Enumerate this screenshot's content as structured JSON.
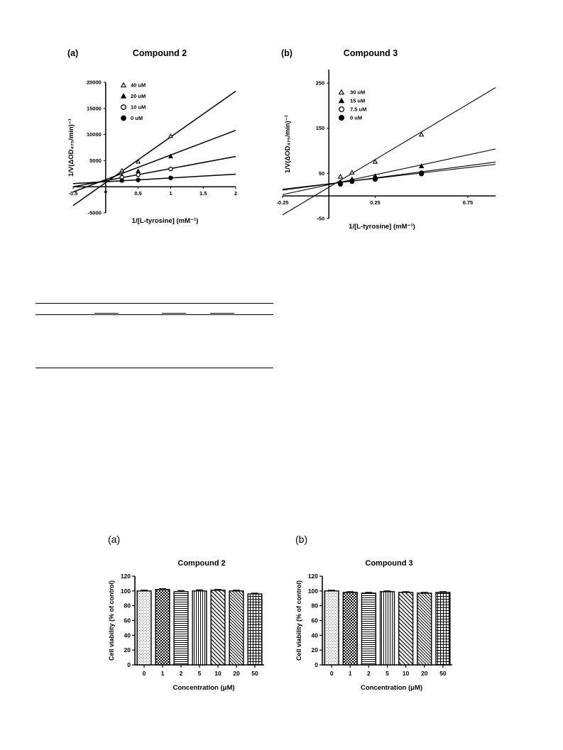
{
  "chart_data": [
    {
      "type": "line",
      "panel_label": "(a)",
      "title": "Compound  2",
      "xlabel": "1/[L-tyrosine] (mM⁻¹)",
      "ylabel": "1/V(ΔOD₄₇₅/min)⁻¹",
      "xlim": [
        -0.5,
        2
      ],
      "ylim": [
        -5000,
        20000
      ],
      "xticks": [
        -0.5,
        0.5,
        1,
        1.5,
        2
      ],
      "xtick_labels": [
        "-0.5",
        "0.5",
        "1",
        "1.5",
        "2"
      ],
      "yticks": [
        -5000,
        5000,
        10000,
        15000,
        20000
      ],
      "ytick_labels": [
        "-5000",
        "5000",
        "10000",
        "15000",
        "20000"
      ],
      "legend_position": "top-left",
      "x": [
        0.25,
        0.5,
        1
      ],
      "series": [
        {
          "name": "40 uM",
          "marker": "triangle-open",
          "values": [
            3100,
            4800,
            9700
          ],
          "fit": [
            [
              -0.5,
              -3600
            ],
            [
              2,
              18300
            ]
          ]
        },
        {
          "name": "20 uM",
          "marker": "triangle-filled",
          "values": [
            2100,
            3000,
            5800
          ],
          "fit": [
            [
              -0.5,
              -1000
            ],
            [
              2,
              10800
            ]
          ]
        },
        {
          "name": "10 uM",
          "marker": "circle-open",
          "values": [
            1800,
            2300,
            3400
          ],
          "fit": [
            [
              -0.5,
              0
            ],
            [
              2,
              5800
            ]
          ]
        },
        {
          "name": "0 uM",
          "marker": "circle-filled",
          "values": [
            1200,
            1300,
            1700
          ],
          "fit": [
            [
              -0.5,
              600
            ],
            [
              2,
              2400
            ]
          ]
        }
      ],
      "extra_points": [
        {
          "x": 0,
          "y": -1000,
          "marker": "circle-filled-small"
        }
      ]
    },
    {
      "type": "line",
      "panel_label": "(b)",
      "title": "Compound 3",
      "xlabel": "1/[L-tyrosine] (mM⁻¹)",
      "ylabel": "1/V(ΔOD₄₇₅/min)⁻¹",
      "xlim": [
        -0.25,
        0.9
      ],
      "ylim": [
        -50,
        280
      ],
      "xticks": [
        -0.25,
        0.25,
        0.75
      ],
      "xtick_labels": [
        "-0.25",
        "0.25",
        "0.75"
      ],
      "yticks": [
        -50,
        50,
        150,
        250
      ],
      "ytick_labels": [
        "-50",
        "50",
        "150",
        "250"
      ],
      "legend_position": "top-left",
      "x": [
        0.0625,
        0.125,
        0.25,
        0.5
      ],
      "series": [
        {
          "name": "30 uM",
          "marker": "triangle-open",
          "values": [
            43,
            52,
            76,
            136
          ],
          "fit": [
            [
              -0.25,
              -42
            ],
            [
              0.9,
              240
            ]
          ]
        },
        {
          "name": "15 uM",
          "marker": "triangle-filled",
          "values": [
            31,
            37,
            44,
            66
          ],
          "fit": [
            [
              -0.25,
              3
            ],
            [
              0.9,
              104
            ]
          ]
        },
        {
          "name": "7.5 uM",
          "marker": "circle-open",
          "values": [
            28,
            34,
            39,
            51
          ],
          "fit": [
            [
              -0.25,
              13
            ],
            [
              0.9,
              75
            ]
          ]
        },
        {
          "name": "0 uM",
          "marker": "circle-filled",
          "values": [
            26,
            32,
            37,
            49
          ],
          "fit": [
            [
              -0.25,
              15
            ],
            [
              0.9,
              70
            ]
          ]
        }
      ]
    },
    {
      "type": "bar",
      "panel_label": "(a)",
      "title": "Compound 2",
      "xlabel": "Concentration (μM)",
      "ylabel": "Cell viability (% of control)",
      "ylim": [
        0,
        120
      ],
      "yticks": [
        0,
        20,
        40,
        60,
        80,
        100,
        120
      ],
      "categories": [
        "0",
        "1",
        "2",
        "5",
        "10",
        "20",
        "50"
      ],
      "values": [
        100,
        102,
        99,
        100,
        101,
        100,
        96
      ],
      "errors": [
        1,
        1,
        1.5,
        1.5,
        1,
        1,
        1
      ],
      "patterns": [
        "fine",
        "check",
        "hlines",
        "vlines",
        "diag",
        "diag-fine",
        "grid"
      ]
    },
    {
      "type": "bar",
      "panel_label": "(b)",
      "title": "Compound 3",
      "xlabel": "Concentration (μM)",
      "ylabel": "Cell viability (% of control)",
      "ylim": [
        0,
        120
      ],
      "yticks": [
        0,
        20,
        40,
        60,
        80,
        100,
        120
      ],
      "categories": [
        "0",
        "1",
        "2",
        "5",
        "10",
        "20",
        "50"
      ],
      "values": [
        100,
        98,
        97,
        99,
        98,
        97,
        98
      ],
      "errors": [
        1,
        1,
        1,
        1,
        1,
        1,
        1
      ],
      "patterns": [
        "fine",
        "check",
        "hlines",
        "vlines",
        "diag",
        "diag-fine",
        "grid"
      ]
    }
  ]
}
